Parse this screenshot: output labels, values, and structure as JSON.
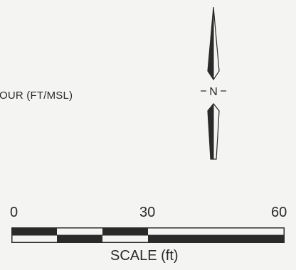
{
  "contour_label": "OUR (FT/MSL)",
  "north_arrow": {
    "letter": "N",
    "icon": "north-arrow-icon"
  },
  "scale": {
    "ticks": [
      "0",
      "30",
      "60"
    ],
    "title": "SCALE (ft)",
    "max_value": 60,
    "upper_row": [
      {
        "from": 0,
        "to": 10,
        "fill": "dark"
      },
      {
        "from": 10,
        "to": 20,
        "fill": "light"
      },
      {
        "from": 20,
        "to": 30,
        "fill": "dark"
      },
      {
        "from": 30,
        "to": 60,
        "fill": "light"
      }
    ],
    "lower_row": [
      {
        "from": 0,
        "to": 10,
        "fill": "light"
      },
      {
        "from": 10,
        "to": 20,
        "fill": "dark"
      },
      {
        "from": 20,
        "to": 30,
        "fill": "light"
      },
      {
        "from": 30,
        "to": 60,
        "fill": "dark"
      }
    ]
  },
  "colors": {
    "ink": "#2a2a2a",
    "paper": "#f4f4f2"
  }
}
